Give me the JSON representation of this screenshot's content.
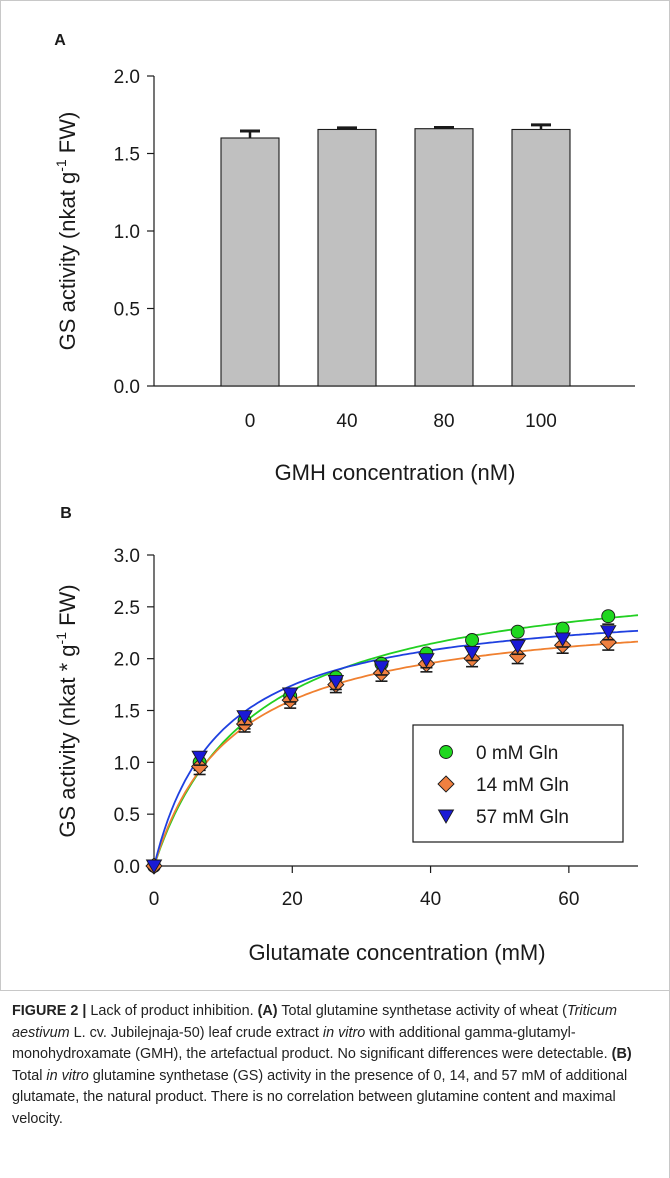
{
  "colors": {
    "bar_fill": "#c0c0c0",
    "bar_stroke": "#1a1a1a",
    "series_0": "#1fd81f",
    "series_14": "#f08040",
    "series_57": "#1a1ad6",
    "fit_0": "#22d022",
    "fit_14": "#f08030",
    "fit_57": "#1f40e0"
  },
  "chart_data": [
    {
      "type": "bar",
      "panel_label": "A",
      "categories": [
        "0",
        "40",
        "80",
        "100"
      ],
      "values": [
        1.6,
        1.655,
        1.66,
        1.655
      ],
      "errors": [
        0.045,
        0.01,
        0.008,
        0.03
      ],
      "xlabel": "GMH concentration (nM)",
      "ylabel": "GS activity (nkat g",
      "ylabel_sup": "-1",
      "ylabel_end": " FW)",
      "ylim": [
        0,
        2.0
      ],
      "yticks": [
        "0.0",
        "0.5",
        "1.0",
        "1.5",
        "2.0"
      ]
    },
    {
      "type": "scatter",
      "panel_label": "B",
      "xlabel": "Glutamate concentration (mM)",
      "ylabel": "GS activity (nkat * g",
      "ylabel_sup": "-1",
      "ylabel_end": " FW)",
      "xlim": [
        0,
        70
      ],
      "ylim": [
        0,
        3.0
      ],
      "xticks": [
        "0",
        "20",
        "40",
        "60"
      ],
      "yticks": [
        "0.0",
        "0.5",
        "1.0",
        "1.5",
        "2.0",
        "2.5",
        "3.0"
      ],
      "legend_position": "bottom-right",
      "x": [
        0,
        6.6,
        13.1,
        19.7,
        26.3,
        32.9,
        39.4,
        46.0,
        52.6,
        59.1,
        65.7
      ],
      "series": [
        {
          "name": "0 mM Gln",
          "marker": "circle",
          "values": [
            0,
            1.0,
            1.4,
            1.64,
            1.82,
            1.95,
            2.05,
            2.18,
            2.26,
            2.29,
            2.41
          ],
          "fit_vmax": 2.92,
          "fit_km": 14.5
        },
        {
          "name": "14 mM Gln",
          "marker": "diamond",
          "values": [
            0,
            0.96,
            1.37,
            1.6,
            1.75,
            1.86,
            1.95,
            2.0,
            2.03,
            2.13,
            2.16
          ],
          "fit_vmax": 2.52,
          "fit_km": 11.5
        },
        {
          "name": "57 mM Gln",
          "marker": "triangle-down",
          "values": [
            0,
            1.05,
            1.44,
            1.66,
            1.78,
            1.92,
            1.99,
            2.06,
            2.12,
            2.19,
            2.26
          ],
          "fit_vmax": 2.58,
          "fit_km": 9.6
        }
      ]
    }
  ],
  "caption": {
    "figure_label": "FIGURE 2 |",
    "title": " Lack of product inhibition. ",
    "a_label": "(A)",
    "a_text1": " Total glutamine synthetase activity of wheat (",
    "a_species": "Triticum aestivum",
    "a_text2": " L. cv. Jubilejnaja-50) leaf crude extract ",
    "a_invitro": "in vitro",
    "a_text3": " with additional gamma-glutamyl-monohydroxamate (GMH), the artefactual product. No significant differences were detectable. ",
    "b_label": "(B)",
    "b_text1": " Total ",
    "b_invitro": "in vitro",
    "b_text2": " glutamine synthetase (GS) activity in the presence of 0, 14, and 57 mM of additional glutamate, the natural product. There is no correlation between glutamine content and maximal velocity."
  }
}
